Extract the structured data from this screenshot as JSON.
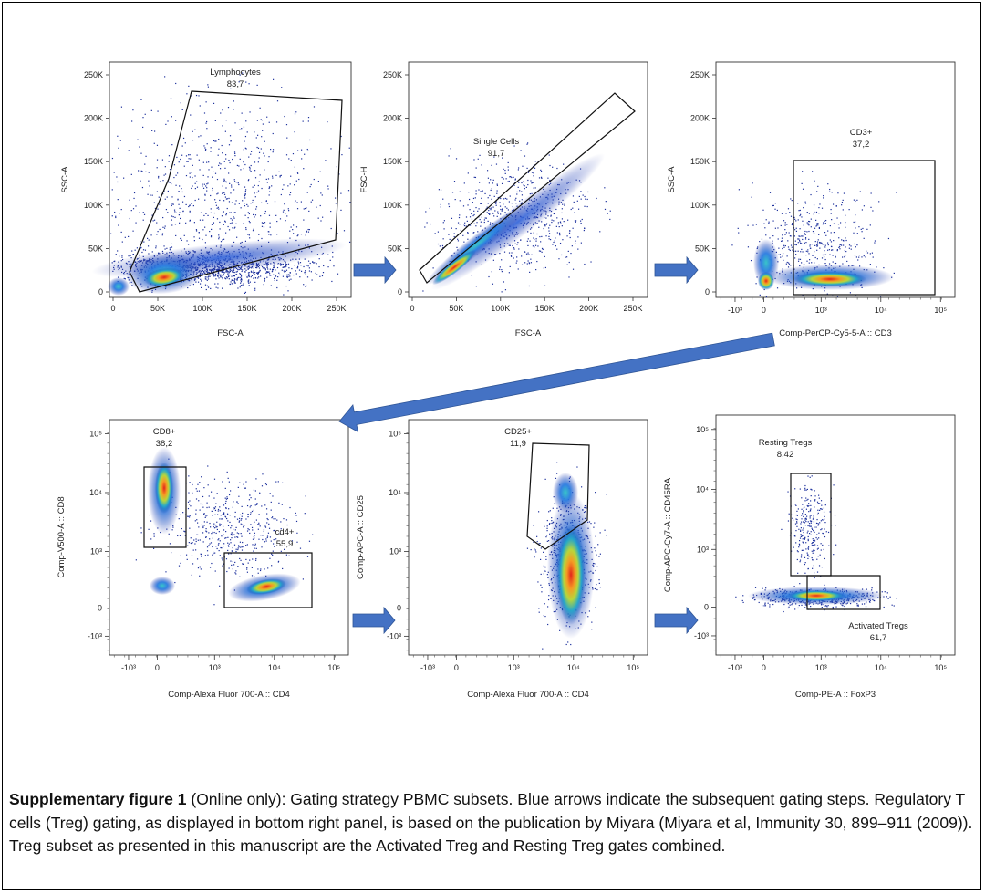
{
  "figure": {
    "caption_bold": "Supplementary figure 1",
    "caption_text": " (Online only): Gating strategy PBMC subsets. Blue arrows indicate the subsequent gating steps. Regulatory T cells (Treg) gating, as displayed in bottom right panel, is based on the publication by Miyara (Miyara et al, Immunity 30, 899–911 (2009)). Treg subset as presented in this manuscript are the Activated Treg and Resting Treg gates combined.",
    "arrow_color": "#4472c4"
  },
  "chart_data": [
    {
      "type": "scatter",
      "xlabel": "FSC-A",
      "ylabel": "SSC-A",
      "xticks": [
        "0",
        "50K",
        "100K",
        "150K",
        "200K",
        "250K"
      ],
      "yticks": [
        "0",
        "50K",
        "100K",
        "150K",
        "200K",
        "250K"
      ],
      "gates": [
        {
          "name": "Lymphocytes",
          "value": "83,7"
        }
      ]
    },
    {
      "type": "scatter",
      "xlabel": "FSC-A",
      "ylabel": "FSC-H",
      "xticks": [
        "0",
        "50K",
        "100K",
        "150K",
        "200K",
        "250K"
      ],
      "yticks": [
        "0",
        "50K",
        "100K",
        "150K",
        "200K",
        "250K"
      ],
      "gates": [
        {
          "name": "Single Cells",
          "value": "91,7"
        }
      ]
    },
    {
      "type": "scatter",
      "xlabel": "Comp-PerCP-Cy5-5-A :: CD3",
      "ylabel": "SSC-A",
      "xticks": [
        "-10³",
        "0",
        "10³",
        "10⁴",
        "10⁵"
      ],
      "yticks": [
        "0",
        "50K",
        "100K",
        "150K",
        "200K",
        "250K"
      ],
      "gates": [
        {
          "name": "CD3+",
          "value": "37,2"
        }
      ]
    },
    {
      "type": "scatter",
      "xlabel": "Comp-Alexa Fluor 700-A :: CD4",
      "ylabel": "Comp-V500-A :: CD8",
      "xticks": [
        "-10³",
        "0",
        "10³",
        "10⁴",
        "10⁵"
      ],
      "yticks": [
        "-10³",
        "0",
        "10³",
        "10⁴",
        "10⁵"
      ],
      "gates": [
        {
          "name": "CD8+",
          "value": "38,2"
        },
        {
          "name": "cd4+",
          "value": "55,9"
        }
      ]
    },
    {
      "type": "scatter",
      "xlabel": "Comp-Alexa Fluor 700-A :: CD4",
      "ylabel": "Comp-APC-A :: CD25",
      "xticks": [
        "-10³",
        "0",
        "10³",
        "10⁴",
        "10⁵"
      ],
      "yticks": [
        "-10³",
        "0",
        "10³",
        "10⁴",
        "10⁵"
      ],
      "gates": [
        {
          "name": "CD25+",
          "value": "11,9"
        }
      ]
    },
    {
      "type": "scatter",
      "xlabel": "Comp-PE-A :: FoxP3",
      "ylabel": "Comp-APC-Cy7-A :: CD45RA",
      "xticks": [
        "-10³",
        "0",
        "10³",
        "10⁴",
        "10⁵"
      ],
      "yticks": [
        "-10³",
        "0",
        "10³",
        "10⁴",
        "10⁵"
      ],
      "gates": [
        {
          "name": "Resting Tregs",
          "value": "8,42"
        },
        {
          "name": "Activated Tregs",
          "value": "61,7"
        }
      ]
    }
  ]
}
